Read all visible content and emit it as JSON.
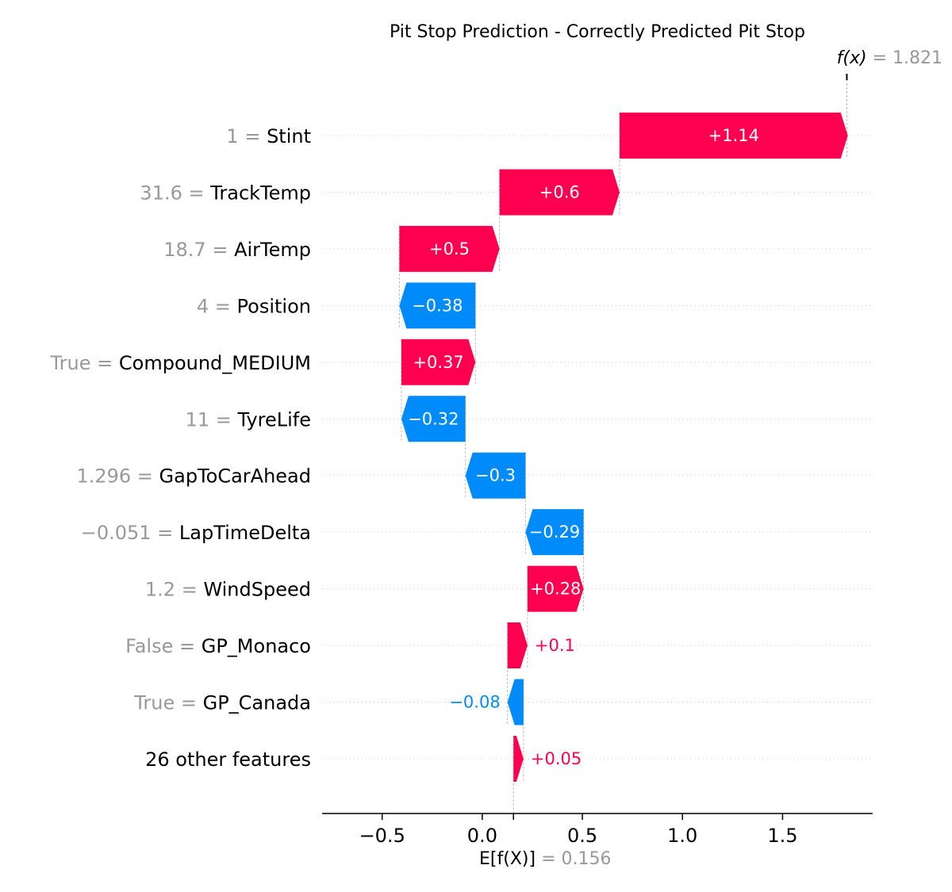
{
  "chart_data": {
    "type": "bar",
    "title": "Pit Stop Prediction - Correctly Predicted Pit Stop",
    "base_value": 0.156,
    "base_value_text": "0.156",
    "base_label": "E[f(X)]",
    "output_value": 1.821,
    "output_value_text": "1.821",
    "output_label": "f(x)",
    "xlim": [
      -0.8,
      1.95
    ],
    "xticks": [
      -0.5,
      0.0,
      0.5,
      1.0,
      1.5
    ],
    "xtick_labels": [
      "−0.5",
      "0.0",
      "0.5",
      "1.0",
      "1.5"
    ],
    "grid": false,
    "colors": {
      "positive": "#ff0051",
      "negative": "#008bfb",
      "muted": "#999999"
    },
    "features": [
      {
        "value_text": "1",
        "name": "Stint",
        "contribution": 1.14,
        "label": "+1.14"
      },
      {
        "value_text": "31.6",
        "name": "TrackTemp",
        "contribution": 0.6,
        "label": "+0.6"
      },
      {
        "value_text": "18.7",
        "name": "AirTemp",
        "contribution": 0.5,
        "label": "+0.5"
      },
      {
        "value_text": "4",
        "name": "Position",
        "contribution": -0.38,
        "label": "−0.38"
      },
      {
        "value_text": "True",
        "name": "Compound_MEDIUM",
        "contribution": 0.37,
        "label": "+0.37"
      },
      {
        "value_text": "11",
        "name": "TyreLife",
        "contribution": -0.32,
        "label": "−0.32"
      },
      {
        "value_text": "1.296",
        "name": "GapToCarAhead",
        "contribution": -0.3,
        "label": "−0.3"
      },
      {
        "value_text": "−0.051",
        "name": "LapTimeDelta",
        "contribution": -0.29,
        "label": "−0.29"
      },
      {
        "value_text": "1.2",
        "name": "WindSpeed",
        "contribution": 0.28,
        "label": "+0.28"
      },
      {
        "value_text": "False",
        "name": "GP_Monaco",
        "contribution": 0.1,
        "label": "+0.1"
      },
      {
        "value_text": "True",
        "name": "GP_Canada",
        "contribution": -0.08,
        "label": "−0.08"
      },
      {
        "value_text": "",
        "name": "26 other features",
        "contribution": 0.05,
        "label": "+0.05"
      }
    ]
  }
}
